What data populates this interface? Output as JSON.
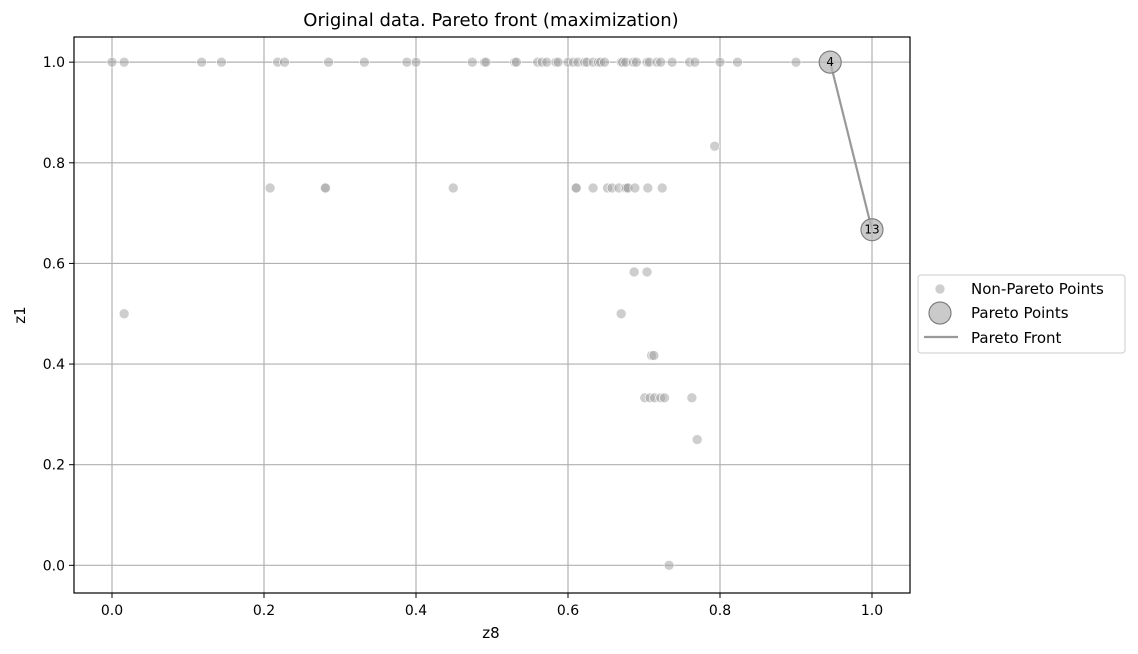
{
  "chart_data": {
    "type": "scatter",
    "title": "Original data. Pareto front (maximization)",
    "xlabel": "z8",
    "ylabel": "z1",
    "xlim": [
      -0.05,
      1.05
    ],
    "ylim": [
      -0.055,
      1.05
    ],
    "xticks": [
      "0.0",
      "0.2",
      "0.4",
      "0.6",
      "0.8",
      "1.0"
    ],
    "yticks": [
      "0.0",
      "0.2",
      "0.4",
      "0.6",
      "0.8",
      "1.0"
    ],
    "grid": true,
    "legend": {
      "placement": "center-right outside",
      "entries": [
        "Non-Pareto Points",
        "Pareto Points",
        "Pareto Front"
      ]
    },
    "series": [
      {
        "name": "Non-Pareto Points",
        "points": [
          [
            0.0,
            1.0
          ],
          [
            0.016,
            1.0
          ],
          [
            0.118,
            1.0
          ],
          [
            0.144,
            1.0
          ],
          [
            0.218,
            1.0
          ],
          [
            0.227,
            1.0
          ],
          [
            0.285,
            1.0
          ],
          [
            0.332,
            1.0
          ],
          [
            0.388,
            1.0
          ],
          [
            0.4,
            1.0
          ],
          [
            0.474,
            1.0
          ],
          [
            0.49,
            1.0
          ],
          [
            0.492,
            1.0
          ],
          [
            0.53,
            1.0
          ],
          [
            0.532,
            1.0
          ],
          [
            0.56,
            1.0
          ],
          [
            0.566,
            1.0
          ],
          [
            0.572,
            1.0
          ],
          [
            0.584,
            1.0
          ],
          [
            0.587,
            1.0
          ],
          [
            0.6,
            1.0
          ],
          [
            0.607,
            1.0
          ],
          [
            0.613,
            1.0
          ],
          [
            0.622,
            1.0
          ],
          [
            0.625,
            1.0
          ],
          [
            0.633,
            1.0
          ],
          [
            0.64,
            1.0
          ],
          [
            0.643,
            1.0
          ],
          [
            0.648,
            1.0
          ],
          [
            0.67,
            1.0
          ],
          [
            0.672,
            1.0
          ],
          [
            0.676,
            1.0
          ],
          [
            0.686,
            1.0
          ],
          [
            0.69,
            1.0
          ],
          [
            0.704,
            1.0
          ],
          [
            0.707,
            1.0
          ],
          [
            0.717,
            1.0
          ],
          [
            0.722,
            1.0
          ],
          [
            0.737,
            1.0
          ],
          [
            0.76,
            1.0
          ],
          [
            0.767,
            1.0
          ],
          [
            0.8,
            1.0
          ],
          [
            0.823,
            1.0
          ],
          [
            0.9,
            1.0
          ],
          [
            0.208,
            0.75
          ],
          [
            0.28,
            0.75
          ],
          [
            0.281,
            0.75
          ],
          [
            0.449,
            0.75
          ],
          [
            0.61,
            0.75
          ],
          [
            0.611,
            0.75
          ],
          [
            0.633,
            0.75
          ],
          [
            0.652,
            0.75
          ],
          [
            0.658,
            0.75
          ],
          [
            0.667,
            0.75
          ],
          [
            0.675,
            0.75
          ],
          [
            0.677,
            0.75
          ],
          [
            0.679,
            0.75
          ],
          [
            0.688,
            0.75
          ],
          [
            0.705,
            0.75
          ],
          [
            0.724,
            0.75
          ],
          [
            0.793,
            0.833
          ],
          [
            0.016,
            0.5
          ],
          [
            0.67,
            0.5
          ],
          [
            0.687,
            0.583
          ],
          [
            0.704,
            0.583
          ],
          [
            0.71,
            0.417
          ],
          [
            0.713,
            0.417
          ],
          [
            0.701,
            0.333
          ],
          [
            0.708,
            0.333
          ],
          [
            0.714,
            0.333
          ],
          [
            0.722,
            0.333
          ],
          [
            0.727,
            0.333
          ],
          [
            0.763,
            0.333
          ],
          [
            0.77,
            0.25
          ],
          [
            0.733,
            0.0
          ]
        ]
      },
      {
        "name": "Pareto Points",
        "points": [
          [
            0.945,
            1.0
          ],
          [
            1.0,
            0.667
          ]
        ],
        "labels": [
          "4",
          "13"
        ]
      },
      {
        "name": "Pareto Front",
        "points": [
          [
            0.945,
            1.0
          ],
          [
            1.0,
            0.667
          ]
        ]
      }
    ]
  }
}
